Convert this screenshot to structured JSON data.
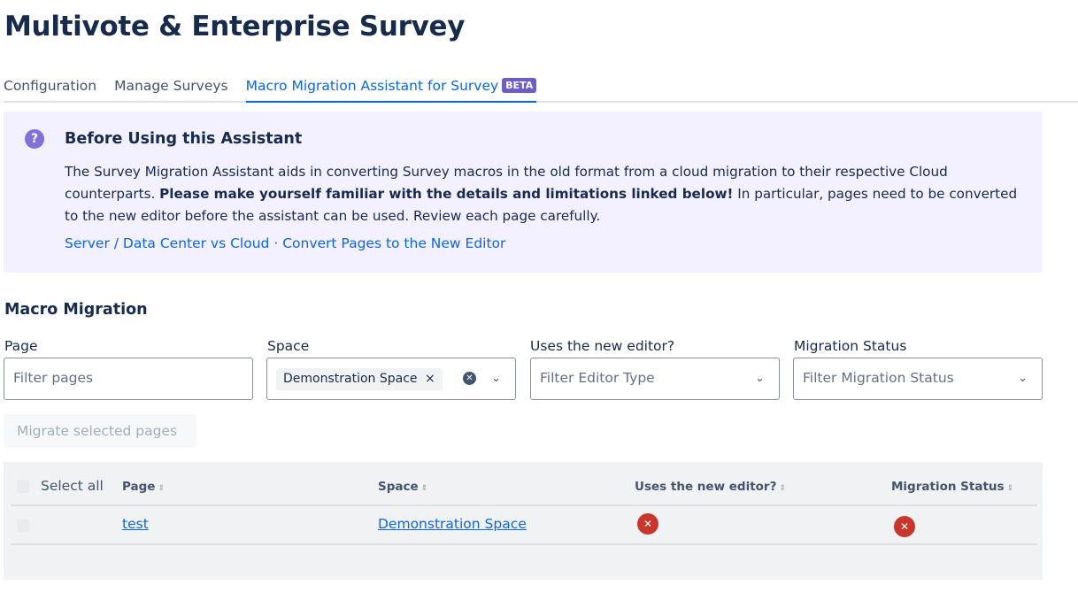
{
  "title": "Multivote & Enterprise Survey",
  "tabs": [
    {
      "label": "Configuration"
    },
    {
      "label": "Manage Surveys"
    },
    {
      "label": "Macro Migration Assistant for Survey",
      "badge": "BETA",
      "active": true
    }
  ],
  "info": {
    "icon": "question-icon",
    "title": "Before Using this Assistant",
    "text_1": "The Survey Migration Assistant aids in converting Survey macros in the old format from a cloud migration to their respective Cloud counterparts. ",
    "text_bold": "Please make yourself familiar with the details and limitations linked below!",
    "text_2": " In particular, pages need to be converted to the new editor before the assistant can be used. Review each page carefully.",
    "link_1": "Server / Data Center vs Cloud",
    "separator": "·",
    "link_2": "Convert Pages to the New Editor"
  },
  "section_title": "Macro Migration",
  "filters": {
    "page": {
      "label": "Page",
      "placeholder": "Filter pages"
    },
    "space": {
      "label": "Space",
      "chip": "Demonstration Space"
    },
    "editor": {
      "label": "Uses the new editor?",
      "placeholder": "Filter Editor Type"
    },
    "status": {
      "label": "Migration Status",
      "placeholder": "Filter Migration Status"
    }
  },
  "migrate_button": "Migrate selected pages",
  "table": {
    "select_all": "Select all",
    "columns": [
      "Page",
      "Space",
      "Uses the new editor?",
      "Migration Status"
    ],
    "rows": [
      {
        "page": "test",
        "space": "Demonstration Space",
        "new_editor": false,
        "migrated": false
      }
    ]
  },
  "colors": {
    "accent": "#0c66e4",
    "panel": "#f3f0ff",
    "error": "#c9372c",
    "badge": "#6e5dc6"
  }
}
